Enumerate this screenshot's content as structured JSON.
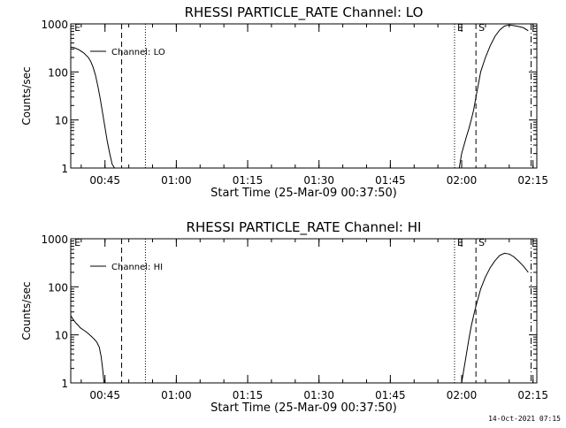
{
  "chart_data": [
    {
      "type": "line",
      "title": "RHESSI PARTICLE_RATE Channel: LO",
      "xlabel": "Start Time (25-Mar-09 00:37:50)",
      "ylabel": "Counts/sec",
      "y_scale": "log",
      "ylim": [
        1,
        1000
      ],
      "xlim_minutes_after_0000": [
        37.8,
        135.8
      ],
      "x_ticks": [
        {
          "t": 45,
          "label": "00:45"
        },
        {
          "t": 60,
          "label": "01:00"
        },
        {
          "t": 75,
          "label": "01:15"
        },
        {
          "t": 90,
          "label": "01:30"
        },
        {
          "t": 105,
          "label": "01:45"
        },
        {
          "t": 120,
          "label": "02:00"
        },
        {
          "t": 135,
          "label": "02:15"
        }
      ],
      "y_ticks": [
        {
          "v": 1,
          "label": "1"
        },
        {
          "v": 10,
          "label": "10"
        },
        {
          "v": 100,
          "label": "100"
        },
        {
          "v": 1000,
          "label": "1000"
        }
      ],
      "legend": {
        "label": "Channel: LO",
        "placement": "top-left"
      },
      "series": [
        {
          "name": "Channel: LO",
          "x": [
            37.8,
            38.5,
            39.5,
            40.5,
            41.5,
            42.0,
            42.5,
            43.0,
            43.5,
            44.0,
            44.5,
            45.0,
            45.5,
            46.0,
            46.5,
            47.0
          ],
          "y": [
            330,
            320,
            290,
            250,
            200,
            165,
            125,
            85,
            50,
            28,
            14,
            7,
            3.5,
            2.0,
            1.2,
            1.0
          ],
          "values": [
            330,
            320,
            290,
            250,
            200,
            165,
            125,
            85,
            50,
            28,
            14,
            7,
            3.5,
            2.0,
            1.2,
            1.0
          ]
        },
        {
          "name": "Channel: LO",
          "x": [
            119.5,
            120.0,
            120.5,
            121.0,
            121.5,
            122.0,
            122.5,
            123.0,
            123.5,
            124.0,
            125.0,
            126.0,
            127.0,
            128.0,
            129.0,
            130.0,
            131.0,
            132.0,
            133.0,
            134.0
          ],
          "y": [
            1.0,
            2.0,
            3.0,
            4.5,
            6.5,
            10,
            16,
            30,
            55,
            100,
            200,
            350,
            550,
            750,
            900,
            950,
            920,
            880,
            830,
            720
          ],
          "values": [
            1.0,
            2.0,
            3.0,
            4.5,
            6.5,
            10,
            16,
            30,
            55,
            100,
            200,
            350,
            550,
            750,
            900,
            950,
            920,
            880,
            830,
            720
          ]
        }
      ],
      "markers": [
        {
          "t": 38.0,
          "style": "none",
          "label": "E"
        },
        {
          "t": 48.5,
          "style": "dashed",
          "label": ""
        },
        {
          "t": 53.5,
          "style": "dotted",
          "label": ""
        },
        {
          "t": 118.5,
          "style": "dotted",
          "label": "E"
        },
        {
          "t": 123.0,
          "style": "dashed",
          "label": "S"
        },
        {
          "t": 134.6,
          "style": "dashdot",
          "label": ""
        }
      ]
    },
    {
      "type": "line",
      "title": "RHESSI PARTICLE_RATE Channel: HI",
      "xlabel": "Start Time (25-Mar-09 00:37:50)",
      "ylabel": "Counts/sec",
      "y_scale": "log",
      "ylim": [
        1,
        1000
      ],
      "xlim_minutes_after_0000": [
        37.8,
        135.8
      ],
      "x_ticks": [
        {
          "t": 45,
          "label": "00:45"
        },
        {
          "t": 60,
          "label": "01:00"
        },
        {
          "t": 75,
          "label": "01:15"
        },
        {
          "t": 90,
          "label": "01:30"
        },
        {
          "t": 105,
          "label": "01:45"
        },
        {
          "t": 120,
          "label": "02:00"
        },
        {
          "t": 135,
          "label": "02:15"
        }
      ],
      "y_ticks": [
        {
          "v": 1,
          "label": "1"
        },
        {
          "v": 10,
          "label": "10"
        },
        {
          "v": 100,
          "label": "100"
        },
        {
          "v": 1000,
          "label": "1000"
        }
      ],
      "legend": {
        "label": "Channel: HI",
        "placement": "top-left"
      },
      "series": [
        {
          "name": "Channel: HI",
          "x": [
            37.8,
            38.3,
            38.8,
            39.3,
            39.8,
            40.3,
            40.8,
            41.3,
            41.8,
            42.3,
            42.8,
            43.3,
            43.8,
            44.2,
            44.5,
            44.8
          ],
          "y": [
            25,
            21,
            18,
            16,
            14,
            13,
            12,
            11,
            10,
            9,
            8,
            7,
            5.5,
            3.5,
            2.0,
            1.0
          ],
          "values": [
            25,
            21,
            18,
            16,
            14,
            13,
            12,
            11,
            10,
            9,
            8,
            7,
            5.5,
            3.5,
            2.0,
            1.0
          ]
        },
        {
          "name": "Channel: HI",
          "x": [
            120.0,
            120.5,
            121.0,
            121.5,
            122.0,
            122.5,
            123.0,
            123.5,
            124.0,
            125.0,
            126.0,
            127.0,
            128.0,
            129.0,
            130.0,
            131.0,
            132.0,
            133.0,
            134.0
          ],
          "y": [
            1.0,
            2.0,
            4.0,
            8.0,
            15,
            25,
            40,
            60,
            90,
            160,
            250,
            350,
            450,
            500,
            480,
            420,
            340,
            270,
            200
          ],
          "values": [
            1.0,
            2.0,
            4.0,
            8.0,
            15,
            25,
            40,
            60,
            90,
            160,
            250,
            350,
            450,
            500,
            480,
            420,
            340,
            270,
            200
          ]
        }
      ],
      "markers": [
        {
          "t": 38.0,
          "style": "none",
          "label": "E"
        },
        {
          "t": 48.5,
          "style": "dashed",
          "label": ""
        },
        {
          "t": 53.5,
          "style": "dotted",
          "label": ""
        },
        {
          "t": 118.5,
          "style": "dotted",
          "label": "E"
        },
        {
          "t": 123.0,
          "style": "dashed",
          "label": "S"
        },
        {
          "t": 134.6,
          "style": "dashdot",
          "label": ""
        }
      ]
    }
  ],
  "footer": {
    "timestamp": "14-Oct-2021 07:15"
  }
}
